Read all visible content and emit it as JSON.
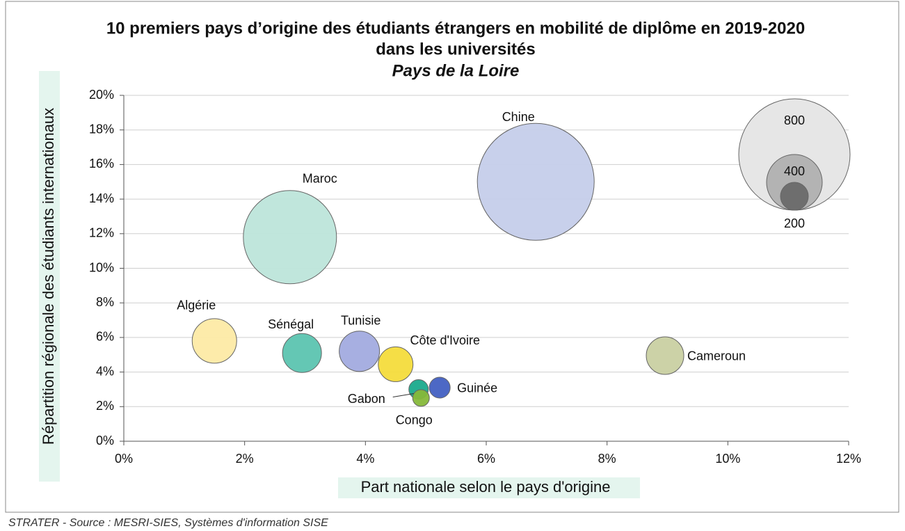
{
  "chart_data": {
    "type": "bubble",
    "title": "10 premiers pays d’origine des étudiants étrangers en mobilité de diplôme en 2019-2020",
    "title_line2": "dans les universités",
    "subtitle": "Pays de la Loire",
    "x_label": "Part nationale selon le pays d'origine",
    "y_label": "Répartition régionale des étudiants internationaux",
    "source": "STRATER - Source : MESRI-SIES, Systèmes d'information SISE",
    "xlim": [
      0,
      12
    ],
    "xticks": [
      {
        "value": 0,
        "label": "0%"
      },
      {
        "value": 2,
        "label": "2%"
      },
      {
        "value": 4,
        "label": "4%"
      },
      {
        "value": 6,
        "label": "6%"
      },
      {
        "value": 8,
        "label": "8%"
      },
      {
        "value": 10,
        "label": "10%"
      },
      {
        "value": 12,
        "label": "12%"
      }
    ],
    "ylim": [
      0,
      20
    ],
    "yticks": [
      {
        "value": 0,
        "label": "0%"
      },
      {
        "value": 2,
        "label": "2%"
      },
      {
        "value": 4,
        "label": "4%"
      },
      {
        "value": 6,
        "label": "6%"
      },
      {
        "value": 8,
        "label": "8%"
      },
      {
        "value": 10,
        "label": "10%"
      },
      {
        "value": 12,
        "label": "12%"
      },
      {
        "value": 14,
        "label": "14%"
      },
      {
        "value": 16,
        "label": "16%"
      },
      {
        "value": 18,
        "label": "18%"
      },
      {
        "value": 20,
        "label": "20%"
      }
    ],
    "grid": true,
    "series": [
      {
        "name": "Chine",
        "color": "#c5cdea",
        "x": 6.82,
        "y": 15.0,
        "size": 840
      },
      {
        "name": "Maroc",
        "color": "#bde5da",
        "x": 2.75,
        "y": 11.8,
        "size": 670
      },
      {
        "name": "Algérie",
        "color": "#fdeaa5",
        "x": 1.5,
        "y": 5.8,
        "size": 320
      },
      {
        "name": "Sénégal",
        "color": "#5cc4b0",
        "x": 2.95,
        "y": 5.1,
        "size": 280
      },
      {
        "name": "Tunisie",
        "color": "#a2abdf",
        "x": 3.9,
        "y": 5.2,
        "size": 290
      },
      {
        "name": "Côte d'Ivoire",
        "color": "#f4dc3c",
        "x": 4.5,
        "y": 4.45,
        "size": 250
      },
      {
        "name": "Cameroun",
        "color": "#c9d0a2",
        "x": 8.96,
        "y": 4.95,
        "size": 270
      },
      {
        "name": "Guinée",
        "color": "#4360c2",
        "x": 5.23,
        "y": 3.1,
        "size": 150
      },
      {
        "name": "Gabon",
        "color": "#1aaa8c",
        "x": 4.88,
        "y": 3.0,
        "size": 140
      },
      {
        "name": "Congo",
        "color": "#86b83a",
        "x": 4.92,
        "y": 2.5,
        "size": 120
      }
    ],
    "size_legend": {
      "values": [
        800,
        400,
        200
      ],
      "colors": [
        "#e6e6e6",
        "#b3b3b3",
        "#6e6e6e"
      ]
    }
  }
}
